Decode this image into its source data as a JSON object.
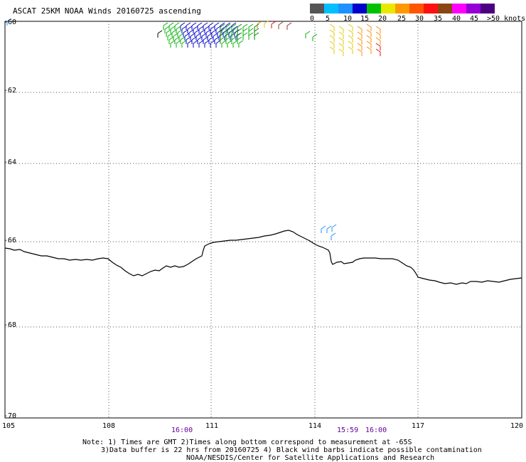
{
  "title": "ASCAT 25KM NOAA Winds 20160725 ascending",
  "legend": {
    "labels": [
      "0",
      "5",
      "10",
      "15",
      "20",
      "25",
      "30",
      "35",
      "40",
      "45",
      ">50 knots"
    ],
    "colors": [
      "#555555",
      "#00bfff",
      "#1e90ff",
      "#0000cd",
      "#00c000",
      "#e8e800",
      "#ff9900",
      "#ff5500",
      "#ff1010",
      "#8b4513",
      "#ff00ff",
      "#9400d3",
      "#4b0082"
    ]
  },
  "y_axis": {
    "labels": [
      "-60",
      "-62",
      "-64",
      "-66",
      "-68",
      "-70"
    ]
  },
  "x_axis": {
    "labels": [
      "105",
      "108",
      "111",
      "114",
      "117",
      "120"
    ]
  },
  "times": [
    {
      "label": "16:00"
    },
    {
      "label": "15:59"
    },
    {
      "label": "16:00"
    }
  ],
  "notes": [
    "Note: 1) Times are GMT 2)Times along bottom correspond to measurement at -65S",
    "3)Data buffer is 22 hrs from 20160725 4) Black wind barbs indicate possible contamination",
    "NOAA/NESDIS/Center for Satellite Applications and Research"
  ]
}
